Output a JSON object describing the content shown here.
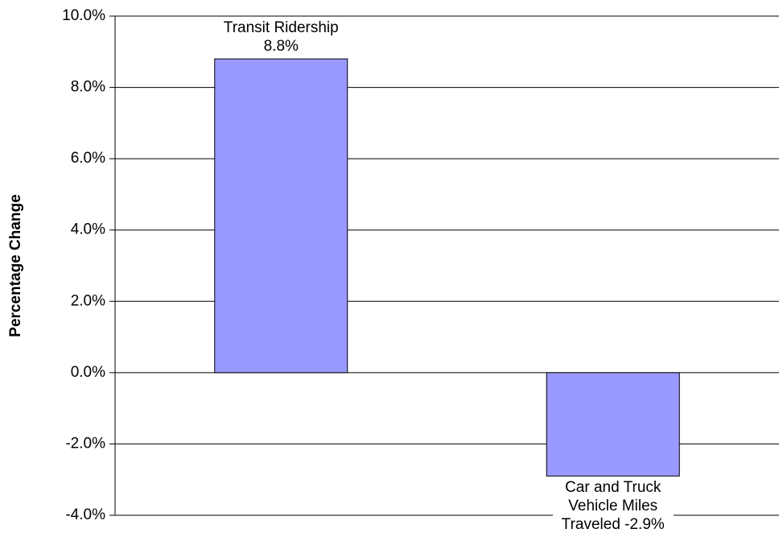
{
  "chart_data": {
    "type": "bar",
    "y_label": "Percentage Change",
    "values": [
      8.8,
      -2.9
    ],
    "value_labels": [
      "Transit Ridership 8.8%",
      "Car and Truck Vehicle Miles Traveled -2.9%"
    ],
    "color": "#9999ff",
    "ylim": [
      -4,
      10
    ],
    "yticks": [
      {
        "value": -4,
        "label": "-4.0%"
      },
      {
        "value": -2,
        "label": "-2.0%"
      },
      {
        "value": 0,
        "label": "0.0%"
      },
      {
        "value": 2,
        "label": "2.0%"
      },
      {
        "value": 4,
        "label": "4.0%"
      },
      {
        "value": 6,
        "label": "6.0%"
      },
      {
        "value": 8,
        "label": "8.0%"
      },
      {
        "value": 10,
        "label": "10.0%"
      }
    ],
    "grid": true
  }
}
